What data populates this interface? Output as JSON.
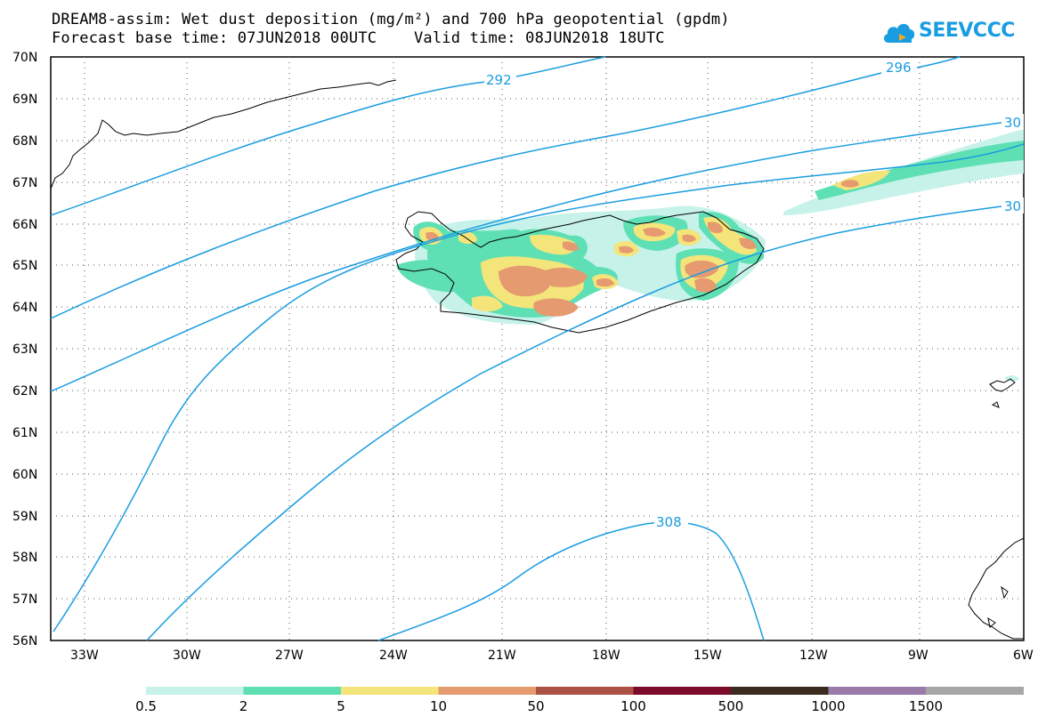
{
  "title": {
    "line1": "DREAM8-assim: Wet dust deposition (mg/m²) and 700 hPa geopotential (gpdm)",
    "line2": "Forecast base time: 07JUN2018 00UTC    Valid time: 08JUN2018 18UTC"
  },
  "logo": {
    "text": "SEEVCCC",
    "icon": "cloud-icon",
    "color": "#1a9de0"
  },
  "map": {
    "lon_range": [
      -34.3,
      -6
    ],
    "lat_range": [
      56,
      70
    ],
    "grid": true,
    "lat_ticks": [
      "70N",
      "69N",
      "68N",
      "67N",
      "66N",
      "65N",
      "64N",
      "63N",
      "62N",
      "61N",
      "60N",
      "59N",
      "58N",
      "57N",
      "56N"
    ],
    "lon_ticks": [
      "33W",
      "30W",
      "27W",
      "24W",
      "21W",
      "18W",
      "15W",
      "12W",
      "9W",
      "6W"
    ],
    "contour_labels": [
      "292",
      "296",
      "30",
      "30",
      "308"
    ],
    "contour_color": "#1a9de0"
  },
  "legend": {
    "colors": [
      "#c6f2ea",
      "#5ee0b4",
      "#f4e57a",
      "#e69a70",
      "#ac5244",
      "#7c0a2a",
      "#3b2a1e",
      "#9a7aa8",
      "#a6a6a6"
    ],
    "labels": [
      "0.5",
      "2",
      "5",
      "10",
      "50",
      "100",
      "500",
      "1000",
      "1500"
    ]
  }
}
